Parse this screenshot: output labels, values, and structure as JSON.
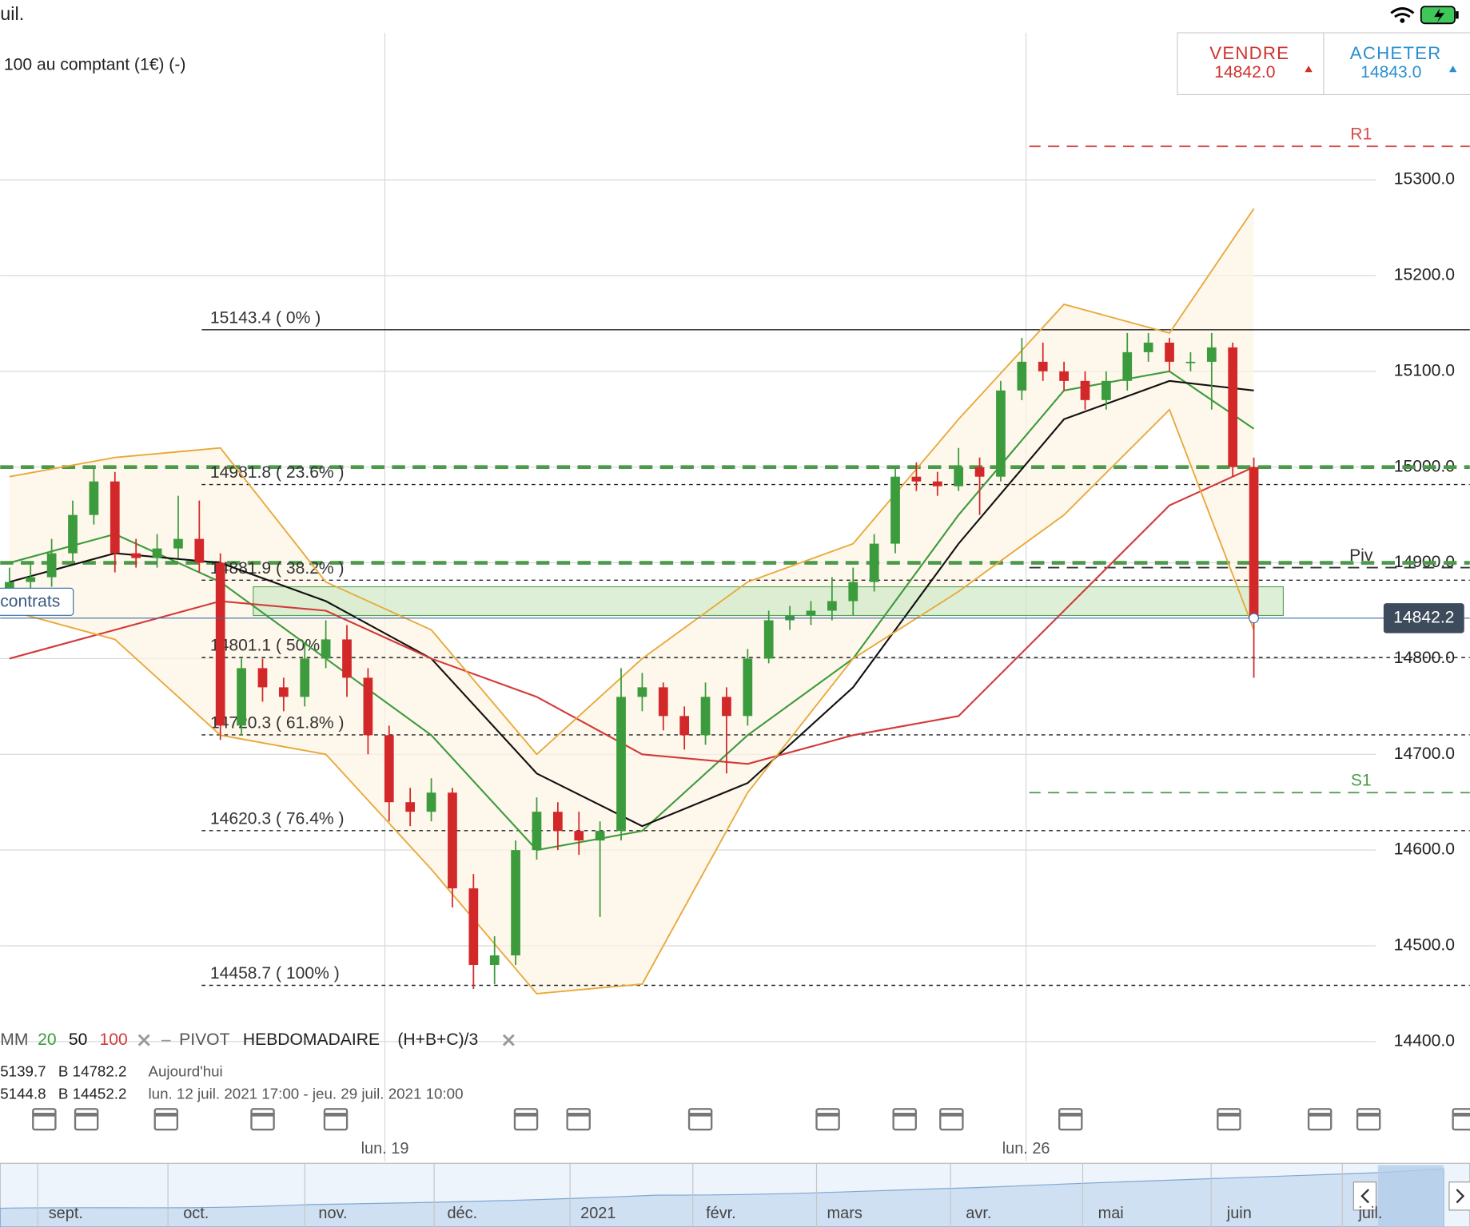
{
  "status_bar": {
    "time": "uil."
  },
  "instrument": {
    "title": "100 au comptant (1€) (-)"
  },
  "trade": {
    "sell_label": "VENDRE",
    "sell_price": "14842.0",
    "buy_label": "ACHETER",
    "buy_price": "14843.0"
  },
  "position_button": "contrats",
  "indicators": {
    "ma_label": "MM",
    "ma_periods": [
      "20",
      "50",
      "100"
    ],
    "pivot_label": "PIVOT",
    "pivot_period": "HEBDOMADAIRE",
    "pivot_formula": "(H+B+C)/3",
    "info_rows": [
      [
        "5139.7",
        "B 14782.2",
        "Aujourd'hui"
      ],
      [
        "5144.8",
        "B 14452.2",
        "lun. 12 juil. 2021 17:00 - jeu. 29 juil. 2021 10:00"
      ]
    ]
  },
  "navigator": {
    "labels": [
      "sept.",
      "oct.",
      "nov.",
      "déc.",
      "2021",
      "févr.",
      "mars",
      "avr.",
      "mai",
      "juin",
      "juil."
    ]
  },
  "chart_data": {
    "type": "candlestick",
    "up_color": "#3c9b3c",
    "down_color": "#d3282a",
    "candles": [
      [
        14870,
        14895,
        14860,
        14880
      ],
      [
        14880,
        14900,
        14870,
        14885
      ],
      [
        14885,
        14925,
        14875,
        14910
      ],
      [
        14910,
        14965,
        14900,
        14950
      ],
      [
        14950,
        15000,
        14940,
        14985
      ],
      [
        14985,
        14995,
        14890,
        14910
      ],
      [
        14910,
        14925,
        14895,
        14905
      ],
      [
        14905,
        14930,
        14895,
        14915
      ],
      [
        14915,
        14970,
        14905,
        14925
      ],
      [
        14925,
        14965,
        14890,
        14900
      ],
      [
        14900,
        14910,
        14715,
        14730
      ],
      [
        14730,
        14800,
        14720,
        14790
      ],
      [
        14790,
        14800,
        14755,
        14770
      ],
      [
        14770,
        14780,
        14745,
        14760
      ],
      [
        14760,
        14815,
        14750,
        14800
      ],
      [
        14800,
        14840,
        14790,
        14820
      ],
      [
        14820,
        14835,
        14760,
        14780
      ],
      [
        14780,
        14790,
        14700,
        14720
      ],
      [
        14720,
        14730,
        14630,
        14650
      ],
      [
        14650,
        14665,
        14625,
        14640
      ],
      [
        14640,
        14675,
        14630,
        14660
      ],
      [
        14660,
        14665,
        14540,
        14560
      ],
      [
        14560,
        14575,
        14455,
        14480
      ],
      [
        14480,
        14510,
        14460,
        14490
      ],
      [
        14490,
        14610,
        14480,
        14600
      ],
      [
        14600,
        14655,
        14590,
        14640
      ],
      [
        14640,
        14650,
        14600,
        14620
      ],
      [
        14620,
        14640,
        14595,
        14610
      ],
      [
        14610,
        14630,
        14530,
        14620
      ],
      [
        14620,
        14790,
        14610,
        14760
      ],
      [
        14760,
        14785,
        14745,
        14770
      ],
      [
        14770,
        14775,
        14725,
        14740
      ],
      [
        14740,
        14750,
        14705,
        14720
      ],
      [
        14720,
        14775,
        14710,
        14760
      ],
      [
        14760,
        14770,
        14680,
        14740
      ],
      [
        14740,
        14810,
        14730,
        14800
      ],
      [
        14800,
        14850,
        14795,
        14840
      ],
      [
        14840,
        14855,
        14830,
        14845
      ],
      [
        14845,
        14860,
        14835,
        14850
      ],
      [
        14850,
        14885,
        14840,
        14860
      ],
      [
        14860,
        14895,
        14845,
        14880
      ],
      [
        14880,
        14930,
        14870,
        14920
      ],
      [
        14920,
        15000,
        14910,
        14990
      ],
      [
        14990,
        15005,
        14975,
        14985
      ],
      [
        14985,
        14995,
        14970,
        14980
      ],
      [
        14980,
        15020,
        14975,
        15000
      ],
      [
        15000,
        15010,
        14950,
        14990
      ],
      [
        14990,
        15090,
        14985,
        15080
      ],
      [
        15080,
        15135,
        15070,
        15110
      ],
      [
        15110,
        15130,
        15090,
        15100
      ],
      [
        15100,
        15110,
        15080,
        15090
      ],
      [
        15090,
        15100,
        15060,
        15070
      ],
      [
        15070,
        15100,
        15060,
        15090
      ],
      [
        15090,
        15140,
        15080,
        15120
      ],
      [
        15120,
        15140,
        15110,
        15130
      ],
      [
        15130,
        15135,
        15100,
        15110
      ],
      [
        15110,
        15120,
        15100,
        15110
      ],
      [
        15110,
        15140,
        15060,
        15125
      ],
      [
        15125,
        15130,
        14990,
        15000
      ],
      [
        15000,
        15010,
        14780,
        14842
      ]
    ],
    "overlay_x": [
      0,
      5,
      10,
      15,
      20,
      25,
      30,
      35,
      40,
      45,
      50,
      55,
      59
    ],
    "series": [
      {
        "color": "#3c9b3c",
        "values": [
          14900,
          14930,
          14880,
          14800,
          14720,
          14600,
          14620,
          14720,
          14800,
          14950,
          15080,
          15100,
          15040
        ]
      },
      {
        "color": "#111111",
        "values": [
          14880,
          14910,
          14900,
          14860,
          14800,
          14680,
          14625,
          14670,
          14770,
          14920,
          15050,
          15090,
          15080
        ]
      },
      {
        "color": "#d33a3a",
        "values": [
          14800,
          14830,
          14860,
          14850,
          14800,
          14760,
          14700,
          14690,
          14720,
          14740,
          14850,
          14960,
          15000
        ]
      },
      {
        "color": "#e8a93a",
        "values": [
          14990,
          15010,
          15020,
          14880,
          14830,
          14700,
          14800,
          14880,
          14920,
          15050,
          15170,
          15140,
          15270
        ]
      },
      {
        "color": "#e8a93a",
        "values": [
          14850,
          14820,
          14720,
          14700,
          14580,
          14450,
          14460,
          14660,
          14800,
          14870,
          14950,
          15060,
          14830
        ]
      }
    ],
    "fib_levels": [
      {
        "value": 15143.4,
        "label": "15143.4 ( 0% )"
      },
      {
        "value": 14981.8,
        "label": "14981.8 ( 23.6% )"
      },
      {
        "value": 14881.9,
        "label": "14881.9 ( 38.2% )"
      },
      {
        "value": 14801.1,
        "label": "14801.1 ( 50% )"
      },
      {
        "value": 14720.3,
        "label": "14720.3 ( 61.8% )"
      },
      {
        "value": 14620.3,
        "label": "14620.3 ( 76.4% )"
      },
      {
        "value": 14458.7,
        "label": "14458.7 ( 100% )"
      }
    ],
    "support_lines": [
      15000,
      14900
    ],
    "zone": [
      14845,
      14875
    ],
    "pivots": [
      {
        "value": 15335,
        "label": "R1",
        "color": "#d84a4a"
      },
      {
        "value": 14895,
        "label": "Piv",
        "color": "#333333"
      },
      {
        "value": 14660,
        "label": "S1",
        "color": "#4a9a4a"
      }
    ],
    "current_price": 14842.2,
    "xlim": [
      -0.44,
      69.24
    ],
    "xticks": [
      {
        "value": 17.8,
        "label": "lun. 19"
      },
      {
        "value": 48.2,
        "label": "lun. 26"
      }
    ],
    "ylim": [
      14274.8,
      15453.6
    ],
    "yticks": [
      {
        "value": 14400,
        "label": "14400.0"
      },
      {
        "value": 14500,
        "label": "14500.0"
      },
      {
        "value": 14600,
        "label": "14600.0"
      },
      {
        "value": 14700,
        "label": "14700.0"
      },
      {
        "value": 14800,
        "label": "14800.0"
      },
      {
        "value": 14900,
        "label": "14900.0"
      },
      {
        "value": 15000,
        "label": "15000.0"
      },
      {
        "value": 15100,
        "label": "15100.0"
      },
      {
        "value": 15200,
        "label": "15200.0"
      },
      {
        "value": 15300,
        "label": "15300.0"
      }
    ],
    "grid": true
  }
}
